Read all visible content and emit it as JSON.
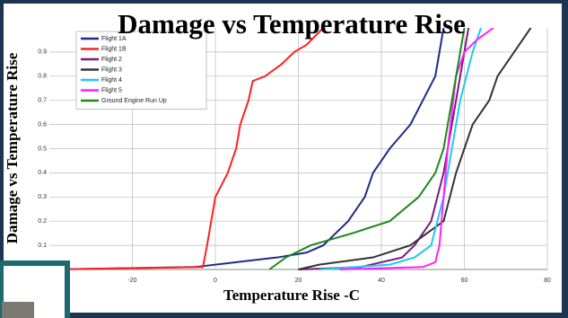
{
  "chart_data": {
    "type": "line",
    "title": "Damage vs Temperature Rise",
    "y_label": "Damage vs Temperature Rise",
    "x_label": "Temperature Rise -C",
    "xlim": [
      -40,
      80
    ],
    "xticks": [
      -20,
      0,
      20,
      40,
      60,
      80
    ],
    "ylim": [
      0,
      1
    ],
    "yticks": [
      0.1,
      0.2,
      0.3,
      0.4,
      0.5,
      0.6,
      0.7,
      0.8,
      0.9
    ],
    "grid": true,
    "legend": "top-left",
    "series": [
      {
        "name": "Flight 1A",
        "color": "#1f2a8a",
        "x": [
          -40,
          -5,
          5,
          15,
          22,
          26,
          32,
          36,
          38,
          42,
          47,
          50,
          53,
          55
        ],
        "values": [
          0,
          0.01,
          0.03,
          0.05,
          0.07,
          0.1,
          0.2,
          0.3,
          0.4,
          0.5,
          0.6,
          0.7,
          0.8,
          1.0
        ]
      },
      {
        "name": "Flight 1B",
        "color": "#ff2020",
        "x": [
          -40,
          -3,
          -2,
          0,
          3,
          5,
          6,
          8,
          9,
          12,
          16,
          19,
          22,
          26
        ],
        "values": [
          0,
          0.01,
          0.1,
          0.3,
          0.4,
          0.5,
          0.6,
          0.7,
          0.78,
          0.8,
          0.85,
          0.9,
          0.93,
          1.0
        ]
      },
      {
        "name": "Flight 2",
        "color": "#7a1a7a",
        "x": [
          20,
          35,
          45,
          48,
          52,
          55,
          57,
          59,
          61
        ],
        "values": [
          0,
          0.01,
          0.05,
          0.1,
          0.2,
          0.4,
          0.6,
          0.8,
          1.0
        ]
      },
      {
        "name": "Flight 3",
        "color": "#333333",
        "x": [
          20,
          25,
          38,
          47,
          55,
          58,
          62,
          66,
          68,
          72,
          76
        ],
        "values": [
          0,
          0.02,
          0.05,
          0.1,
          0.2,
          0.4,
          0.6,
          0.7,
          0.8,
          0.9,
          1.0
        ]
      },
      {
        "name": "Flight 4",
        "color": "#20c8f0",
        "x": [
          25,
          42,
          48,
          52,
          55,
          57,
          59,
          62,
          64
        ],
        "values": [
          0,
          0.02,
          0.05,
          0.1,
          0.3,
          0.5,
          0.7,
          0.9,
          1.0
        ]
      },
      {
        "name": "Flight 5",
        "color": "#ff20ff",
        "x": [
          30,
          50,
          53,
          54,
          56,
          58,
          60,
          63,
          67
        ],
        "values": [
          0,
          0.01,
          0.03,
          0.1,
          0.5,
          0.8,
          0.9,
          0.95,
          1.0
        ]
      },
      {
        "name": "Ground Engine Run Up",
        "color": "#1a8a1a",
        "x": [
          13,
          17,
          23,
          33,
          42,
          49,
          53,
          55,
          56,
          58,
          60
        ],
        "values": [
          0,
          0.05,
          0.1,
          0.15,
          0.2,
          0.3,
          0.4,
          0.5,
          0.6,
          0.8,
          1.0
        ]
      }
    ]
  }
}
